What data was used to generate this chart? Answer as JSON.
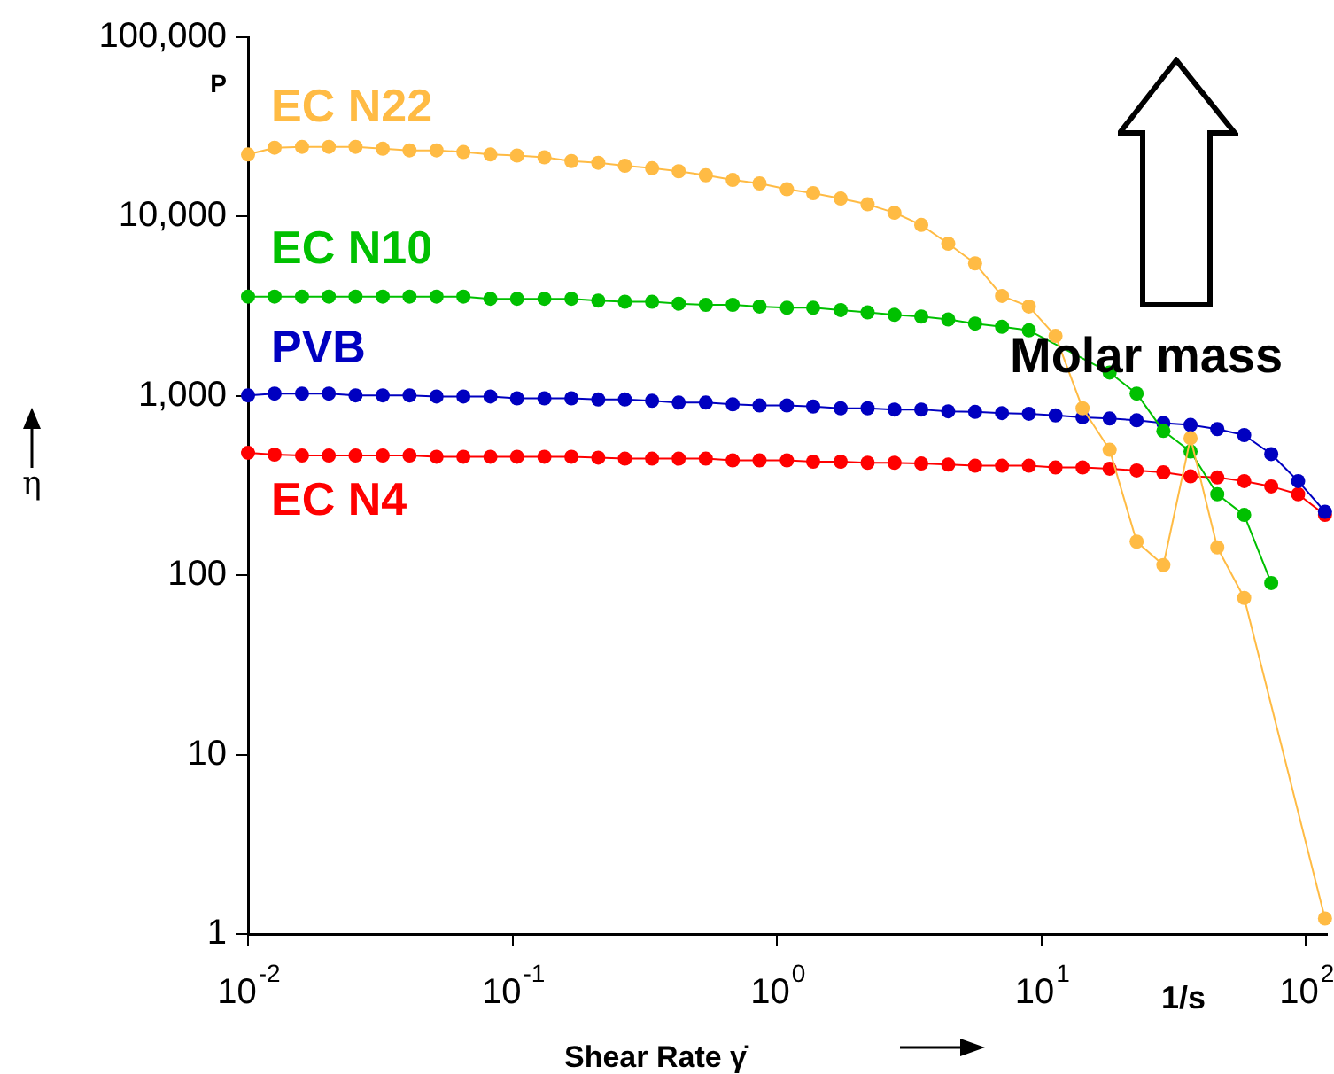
{
  "chart_data": {
    "type": "line",
    "xlabel": "Shear Rate γ̇",
    "ylabel": "η",
    "log": "xy",
    "marker": "circle",
    "line_style": "solid",
    "legend": false,
    "grid": false,
    "annotations": [
      "P",
      "1/s",
      "Molar mass"
    ],
    "xlim": [
      0.01,
      120
    ],
    "xticks": [
      {
        "value": 0.01,
        "label": "10$^{-2}$"
      },
      {
        "value": 0.1,
        "label": "10$^{-1}$"
      },
      {
        "value": 1,
        "label": "10$^{0}$"
      },
      {
        "value": 10,
        "label": "10$^{1}$"
      },
      {
        "value": 100,
        "label": "10$^{2}$"
      }
    ],
    "ylim": [
      1,
      100000
    ],
    "yticks": [
      1,
      10,
      100,
      {
        "value": 1000,
        "label": "1,000"
      },
      {
        "value": 10000,
        "label": "10,000"
      },
      {
        "value": 100000,
        "label": "100,000"
      }
    ],
    "x": [
      0.01,
      0.0126,
      0.016,
      0.0202,
      0.0255,
      0.0323,
      0.0408,
      0.0516,
      0.0652,
      0.0825,
      0.104,
      0.132,
      0.167,
      0.211,
      0.266,
      0.337,
      0.425,
      0.538,
      0.68,
      0.859,
      1.09,
      1.37,
      1.74,
      2.2,
      2.78,
      3.51,
      4.44,
      5.61,
      7.09,
      8.96,
      11.3,
      14.3,
      18.1,
      22.9,
      28.9,
      36.6,
      46.2,
      58.4,
      73.9,
      93.4,
      118
    ],
    "series": [
      {
        "name": "EC N22",
        "color": "#ffbb44",
        "values": [
          22200,
          24200,
          24500,
          24500,
          24500,
          23900,
          23400,
          23400,
          22900,
          22200,
          21900,
          21400,
          20400,
          19950,
          19200,
          18600,
          17900,
          17000,
          16000,
          15300,
          14200,
          13500,
          12600,
          11700,
          10500,
          8980,
          7060,
          5480,
          3610,
          3150,
          2160,
          853,
          501,
          154,
          114,
          582,
          143,
          74.8,
          null,
          null,
          1.22
        ]
      },
      {
        "name": "EC N10",
        "color": "#00c000",
        "values": [
          3580,
          3580,
          3580,
          3580,
          3580,
          3580,
          3580,
          3580,
          3580,
          3480,
          3480,
          3480,
          3480,
          3400,
          3350,
          3350,
          3270,
          3220,
          3220,
          3150,
          3100,
          3100,
          3010,
          2920,
          2830,
          2770,
          2670,
          2530,
          2430,
          2320,
          null,
          null,
          1350,
          1030,
          638,
          490,
          283,
          217,
          90.6,
          null,
          null
        ]
      },
      {
        "name": "PVB",
        "color": "#0000c0",
        "values": [
          1007,
          1030,
          1030,
          1030,
          1007,
          1007,
          1007,
          993,
          993,
          993,
          970,
          970,
          970,
          955,
          955,
          940,
          918,
          918,
          897,
          885,
          885,
          873,
          853,
          853,
          840,
          840,
          821,
          815,
          802,
          795,
          778,
          760,
          748,
          731,
          705,
          689,
          653,
          605,
          474,
          335,
          226
        ]
      },
      {
        "name": "EC N4",
        "color": "#ff0000",
        "values": [
          482,
          471,
          465,
          465,
          465,
          465,
          465,
          458,
          458,
          458,
          458,
          458,
          458,
          453,
          447,
          447,
          447,
          447,
          437,
          437,
          437,
          430,
          430,
          424,
          424,
          420,
          414,
          408,
          408,
          408,
          399,
          399,
          393,
          384,
          375,
          356,
          351,
          335,
          313,
          283,
          217
        ]
      }
    ]
  }
}
